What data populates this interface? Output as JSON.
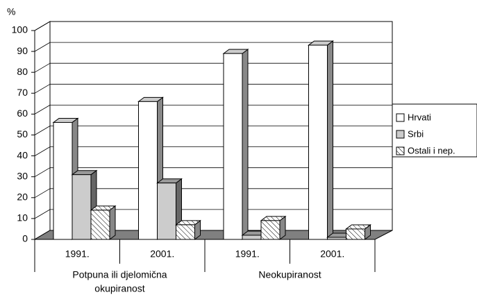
{
  "chart_data": {
    "type": "bar3d",
    "y_label": "%",
    "categories": [
      "1991.",
      "2001.",
      "1991.",
      "2001."
    ],
    "groups": [
      [
        "Potpuna ili djelomična",
        "okupiranost"
      ],
      [
        "Neokupiranost"
      ]
    ],
    "series": [
      {
        "name": "Hrvati",
        "color": "#ffffff",
        "values": [
          56,
          66,
          89,
          93
        ]
      },
      {
        "name": "Srbi",
        "color": "#cccccc",
        "values": [
          31,
          27,
          2,
          1
        ]
      },
      {
        "name": "Ostali i nep.",
        "color": "#ffffff",
        "pattern": "hatch",
        "values": [
          14,
          7,
          9,
          5
        ]
      }
    ],
    "ylim": [
      0,
      100
    ],
    "yticks": [
      0,
      10,
      20,
      30,
      40,
      50,
      60,
      70,
      80,
      90,
      100
    ],
    "grid": true,
    "legend": "right"
  }
}
